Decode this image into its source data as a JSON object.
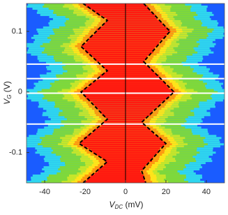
{
  "chart_data": {
    "type": "colormap",
    "xlabel": {
      "main": "V",
      "sub": "DC",
      "unit": " (mV)"
    },
    "ylabel": {
      "main": "V",
      "sub": "G",
      "unit": " (V)"
    },
    "xlim": [
      -49,
      49
    ],
    "ylim": [
      -0.15,
      0.146
    ],
    "xticks": [
      -40,
      -20,
      0,
      20,
      40
    ],
    "yticks": [
      -0.1,
      0,
      0.1
    ],
    "colormap": [
      "#1a5cff",
      "#2fd6ee",
      "#7fd83a",
      "#c6e62a",
      "#ffe41a",
      "#ff9810",
      "#ff1a10"
    ],
    "dashed_lines": [
      {
        "color": "#000000",
        "x": [
          -21,
          -9,
          -22,
          -9,
          -22,
          -9,
          -23,
          -9,
          -21
        ],
        "y": [
          0.146,
          0.118,
          0.075,
          0.035,
          0.0,
          -0.045,
          -0.085,
          -0.115,
          -0.15
        ]
      },
      {
        "color": "#000000",
        "x": [
          9,
          22,
          9,
          24,
          8,
          20,
          8,
          10
        ],
        "y": [
          0.146,
          0.1,
          0.05,
          0.0,
          -0.05,
          -0.085,
          -0.13,
          -0.15
        ]
      }
    ],
    "white_lines": [
      0.046,
      0.022,
      -0.002,
      -0.053
    ],
    "zero_line": true
  }
}
